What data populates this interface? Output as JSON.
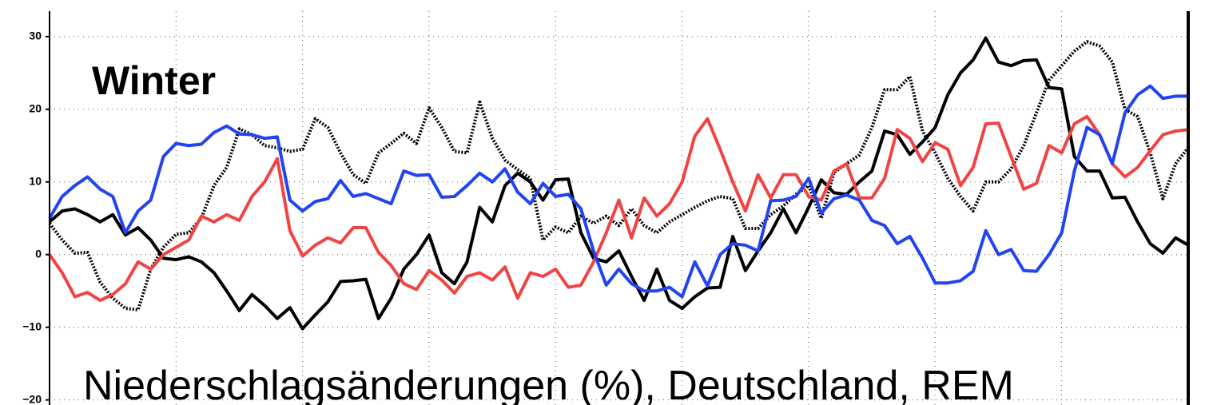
{
  "chart_data": {
    "type": "line",
    "title": "Winter",
    "subtitle": "Niederschlagsänderungen (%), Deutschland, REM",
    "ylim": [
      -20.7,
      33.5
    ],
    "yticks": [
      {
        "value": -20,
        "label": "−20"
      },
      {
        "value": -10,
        "label": "−10"
      },
      0,
      10,
      20,
      30
    ],
    "grid": true,
    "series": [
      {
        "color": "#000000",
        "style": "solid",
        "values": [
          4.5,
          6,
          6.3,
          5.5,
          4.5,
          5.5,
          2.7,
          3.7,
          2,
          -0.5,
          -0.7,
          -0.3,
          -1,
          -2.5,
          -5,
          -7.7,
          -5.5,
          -7,
          -8.8,
          -7.3,
          -10.2,
          -8.3,
          -6.5,
          -3.7,
          -3.6,
          -3.4,
          -8.8,
          -6,
          -2,
          0,
          2.7,
          -2.5,
          -4,
          -1,
          6.5,
          4.5,
          9.5,
          11.2,
          10,
          7.5,
          10.3,
          10.4,
          3,
          -0.5,
          -1,
          0.5,
          -3,
          -6.3,
          -2,
          -6.3,
          -7.4,
          -5.8,
          -4.6,
          -4.5,
          2.5,
          -2.2,
          0.5,
          3,
          6.3,
          3,
          6.5,
          10.3,
          8.5,
          8.3,
          10,
          11.5,
          17,
          16.5,
          13.8,
          15.5,
          17.5,
          22,
          25,
          26.8,
          29.8,
          26.5,
          26,
          26.7,
          26.8,
          23,
          22.8,
          13.5,
          11.5,
          11.5,
          7.8,
          7.9,
          4.5,
          1.5,
          0.2,
          2.3,
          1.3
        ]
      },
      {
        "color": "#000000",
        "style": "dotted",
        "values": [
          4.3,
          2,
          0.2,
          0.3,
          -3.8,
          -6,
          -7.4,
          -7.6,
          -2,
          1,
          2.8,
          3,
          5,
          9.5,
          12,
          17.3,
          16.5,
          15,
          14.7,
          14.2,
          14.5,
          18.7,
          17.5,
          14,
          11,
          9.8,
          14,
          15.3,
          16.7,
          15.3,
          20.2,
          17.5,
          14.2,
          14,
          21,
          16,
          13,
          11.7,
          10.5,
          2,
          3.8,
          3,
          5.3,
          4.3,
          5.3,
          4,
          6.3,
          4,
          3,
          4.5,
          5.5,
          6.5,
          7.4,
          8,
          7.7,
          3.6,
          3.6,
          5.5,
          6.7,
          8.3,
          9.5,
          5,
          11.3,
          12.5,
          13.7,
          17.5,
          22.7,
          22.7,
          24.5,
          17,
          14,
          10.5,
          8,
          6,
          10,
          10,
          11.8,
          15,
          19.5,
          24,
          26,
          28,
          29.3,
          28.7,
          26.5,
          20,
          19,
          14,
          7.7,
          12.5,
          14.7
        ]
      },
      {
        "color": "#f04444",
        "style": "solid",
        "values": [
          0,
          -2.5,
          -5.8,
          -5.2,
          -6.3,
          -5.5,
          -4,
          -1,
          -2,
          0,
          1,
          2,
          5.3,
          4.5,
          5.5,
          4.7,
          8,
          10,
          13.2,
          3.3,
          -0.2,
          1.3,
          2.3,
          1.6,
          3.7,
          3.7,
          0.3,
          -1.5,
          -4,
          -4.8,
          -2.2,
          -3.5,
          -5.3,
          -3,
          -2.5,
          -3.5,
          -1.7,
          -6,
          -2.5,
          -3,
          -2,
          -4.5,
          -4.2,
          -1,
          3,
          7.5,
          2.3,
          7.8,
          5.3,
          7,
          10,
          16.3,
          18.7,
          14.5,
          10,
          6,
          11,
          7.8,
          11,
          11,
          8,
          7.5,
          11.5,
          12.5,
          7.8,
          7.8,
          10.5,
          17.2,
          16,
          12.8,
          15.4,
          14.5,
          9.5,
          12,
          18,
          18.1,
          13.5,
          9,
          9.8,
          15,
          14,
          18,
          19,
          16.5,
          12.5,
          10.7,
          12,
          14.3,
          16.5,
          17,
          17.2
        ]
      },
      {
        "color": "#2244f0",
        "style": "solid",
        "values": [
          5,
          8,
          9.5,
          10.7,
          9,
          8,
          3,
          6,
          7.5,
          13.5,
          15.3,
          15,
          15.2,
          16.8,
          17.7,
          16.6,
          16.5,
          16,
          16.2,
          7.5,
          6,
          7.3,
          7.7,
          10.2,
          8,
          8.4,
          7.7,
          7,
          11.5,
          10.9,
          11,
          7.9,
          8,
          9.5,
          11.2,
          10,
          11.8,
          8.6,
          7,
          9.8,
          8,
          8.3,
          6.3,
          0.5,
          -4.2,
          -2,
          -4,
          -5,
          -5,
          -4.5,
          -5.8,
          -1,
          -4.3,
          0,
          1.5,
          1.3,
          0.5,
          7.4,
          7.5,
          8,
          10.5,
          5.7,
          7.7,
          8.2,
          7.5,
          4.7,
          4,
          1.5,
          2.5,
          -0.5,
          -3.9,
          -3.9,
          -3.6,
          -2.3,
          3.3,
          0,
          0.7,
          -2.2,
          -2.3,
          0,
          3,
          11.5,
          17.5,
          16.5,
          12.5,
          19.5,
          22,
          23.2,
          21.5,
          21.8,
          21.8
        ]
      }
    ]
  }
}
